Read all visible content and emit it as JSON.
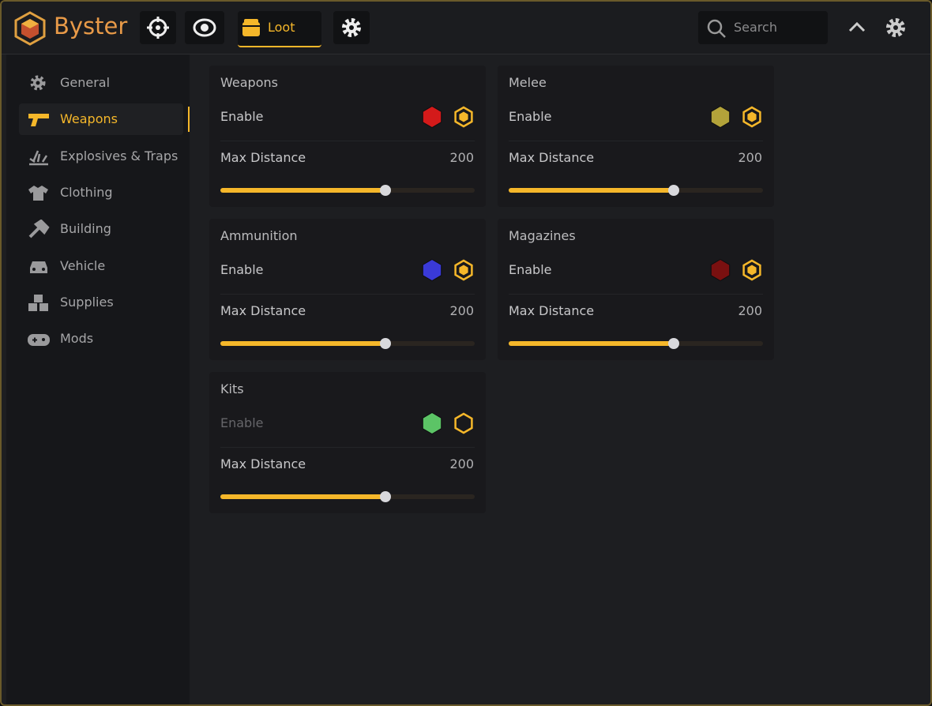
{
  "header": {
    "app_name": "Byster",
    "active_tab": "Loot",
    "search_placeholder": "Search"
  },
  "sidebar": {
    "active": 1,
    "items": [
      "General",
      "Weapons",
      "Explosives & Traps",
      "Clothing",
      "Building",
      "Vehicle",
      "Supplies",
      "Mods"
    ]
  },
  "cards": [
    {
      "title": "Weapons",
      "enable_label": "Enable",
      "enabled": true,
      "color": "#d41a1a",
      "distance_label": "Max Distance",
      "distance": 200
    },
    {
      "title": "Melee",
      "enable_label": "Enable",
      "enabled": true,
      "color": "#b3a33a",
      "distance_label": "Max Distance",
      "distance": 200
    },
    {
      "title": "Ammunition",
      "enable_label": "Enable",
      "enabled": true,
      "color": "#3a3ad8",
      "distance_label": "Max Distance",
      "distance": 200
    },
    {
      "title": "Magazines",
      "enable_label": "Enable",
      "enabled": true,
      "color": "#7a1010",
      "distance_label": "Max Distance",
      "distance": 200
    },
    {
      "title": "Kits",
      "enable_label": "Enable",
      "enabled": false,
      "color": "#5cc466",
      "distance_label": "Max Distance",
      "distance": 200
    }
  ]
}
